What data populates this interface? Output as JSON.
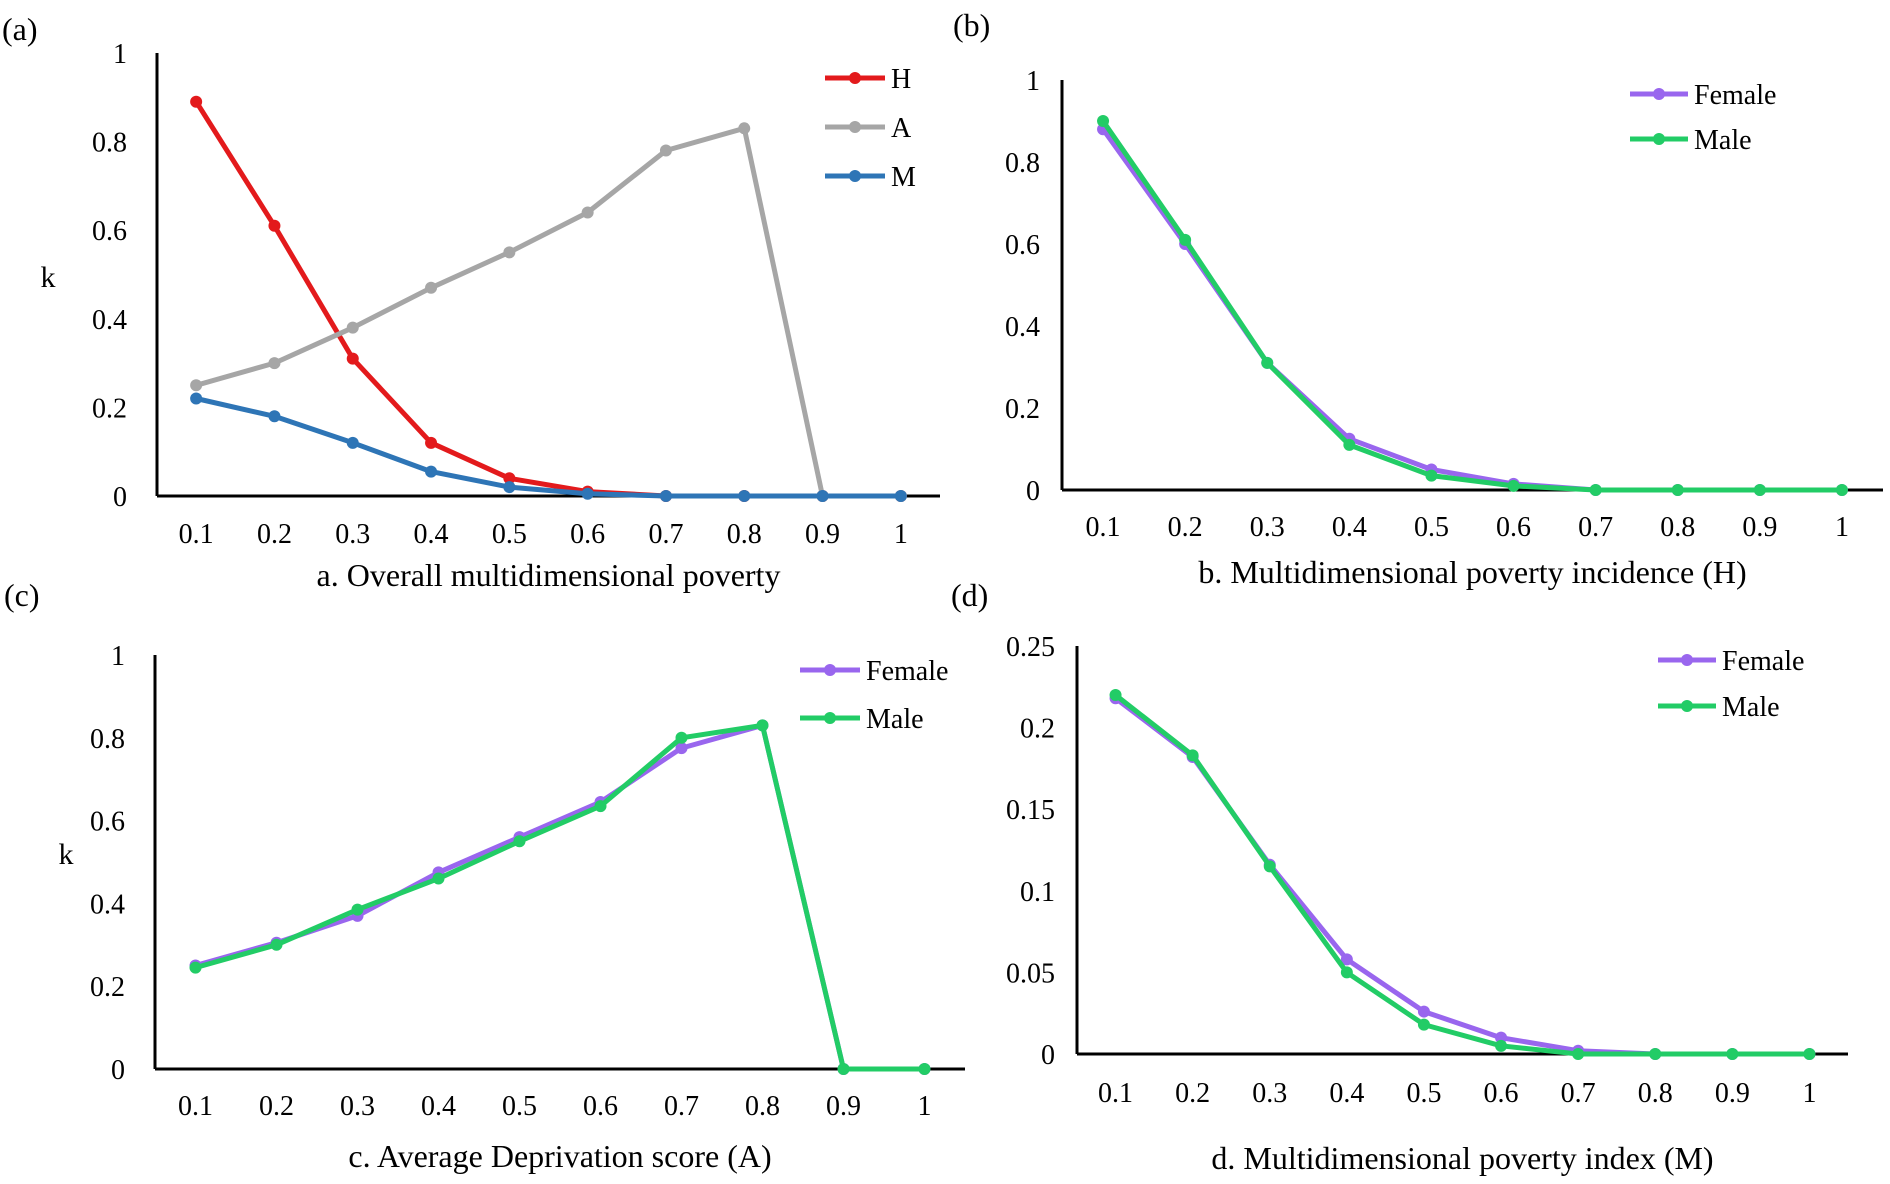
{
  "figure": {
    "colors": {
      "H": "#e31a1c",
      "A": "#a6a6a6",
      "M": "#2e75b6",
      "Female": "#9966ee",
      "Male": "#22cc66",
      "axis": "#000000"
    }
  },
  "chart_data": [
    {
      "panel_label": "(a)",
      "type": "line",
      "title": "a. Overall multidimensional poverty",
      "xlabel": "a. Overall multidimensional poverty",
      "ylabel": "k",
      "x": [
        0.1,
        0.2,
        0.3,
        0.4,
        0.5,
        0.6,
        0.7,
        0.8,
        0.9,
        1
      ],
      "x_tick_labels": [
        "0.1",
        "0.2",
        "0.3",
        "0.4",
        "0.5",
        "0.6",
        "0.7",
        "0.8",
        "0.9",
        "1"
      ],
      "ylim": [
        0,
        1
      ],
      "y_ticks": [
        0,
        0.2,
        0.4,
        0.6,
        0.8,
        1
      ],
      "y_tick_labels": [
        "0",
        "0.2",
        "0.4",
        "0.6",
        "0.8",
        "1"
      ],
      "legend_position": "top-right",
      "series": [
        {
          "name": "H",
          "color": "#e31a1c",
          "values": [
            0.89,
            0.61,
            0.31,
            0.12,
            0.04,
            0.01,
            0.0,
            0.0,
            0.0,
            0.0
          ]
        },
        {
          "name": "A",
          "color": "#a6a6a6",
          "values": [
            0.25,
            0.3,
            0.38,
            0.47,
            0.55,
            0.64,
            0.78,
            0.83,
            0.0,
            0.0
          ]
        },
        {
          "name": "M",
          "color": "#2e75b6",
          "values": [
            0.22,
            0.18,
            0.12,
            0.055,
            0.02,
            0.005,
            0.0,
            0.0,
            0.0,
            0.0
          ]
        }
      ]
    },
    {
      "panel_label": "(b)",
      "type": "line",
      "title": "b. Multidimensional poverty incidence (H)",
      "xlabel": "b. Multidimensional poverty incidence (H)",
      "ylabel": "",
      "x": [
        0.1,
        0.2,
        0.3,
        0.4,
        0.5,
        0.6,
        0.7,
        0.8,
        0.9,
        1
      ],
      "x_tick_labels": [
        "0.1",
        "0.2",
        "0.3",
        "0.4",
        "0.5",
        "0.6",
        "0.7",
        "0.8",
        "0.9",
        "1"
      ],
      "ylim": [
        0,
        1
      ],
      "y_ticks": [
        0,
        0.2,
        0.4,
        0.6,
        0.8,
        1
      ],
      "y_tick_labels": [
        "0",
        "0.2",
        "0.4",
        "0.6",
        "0.8",
        "1"
      ],
      "legend_position": "top-right",
      "series": [
        {
          "name": "Female",
          "color": "#9966ee",
          "values": [
            0.88,
            0.6,
            0.31,
            0.125,
            0.05,
            0.015,
            0.0,
            0.0,
            0.0,
            0.0
          ]
        },
        {
          "name": "Male",
          "color": "#22cc66",
          "values": [
            0.9,
            0.61,
            0.31,
            0.11,
            0.035,
            0.01,
            0.0,
            0.0,
            0.0,
            0.0
          ]
        }
      ]
    },
    {
      "panel_label": "(c)",
      "type": "line",
      "title": "c. Average Deprivation score (A)",
      "xlabel": "c. Average Deprivation score (A)",
      "ylabel": "k",
      "x": [
        0.1,
        0.2,
        0.3,
        0.4,
        0.5,
        0.6,
        0.7,
        0.8,
        0.9,
        1
      ],
      "x_tick_labels": [
        "0.1",
        "0.2",
        "0.3",
        "0.4",
        "0.5",
        "0.6",
        "0.7",
        "0.8",
        "0.9",
        "1"
      ],
      "ylim": [
        0,
        1
      ],
      "y_ticks": [
        0,
        0.2,
        0.4,
        0.6,
        0.8,
        1
      ],
      "y_tick_labels": [
        "0",
        "0.2",
        "0.4",
        "0.6",
        "0.8",
        "1"
      ],
      "legend_position": "top-right",
      "series": [
        {
          "name": "Female",
          "color": "#9966ee",
          "values": [
            0.25,
            0.305,
            0.37,
            0.475,
            0.56,
            0.645,
            0.775,
            0.83,
            0.0,
            0.0
          ]
        },
        {
          "name": "Male",
          "color": "#22cc66",
          "values": [
            0.245,
            0.3,
            0.385,
            0.46,
            0.55,
            0.635,
            0.8,
            0.83,
            0.0,
            0.0
          ]
        }
      ]
    },
    {
      "panel_label": "(d)",
      "type": "line",
      "title": "d. Multidimensional poverty index (M)",
      "xlabel": "d. Multidimensional poverty index (M)",
      "ylabel": "",
      "x": [
        0.1,
        0.2,
        0.3,
        0.4,
        0.5,
        0.6,
        0.7,
        0.8,
        0.9,
        1
      ],
      "x_tick_labels": [
        "0.1",
        "0.2",
        "0.3",
        "0.4",
        "0.5",
        "0.6",
        "0.7",
        "0.8",
        "0.9",
        "1"
      ],
      "ylim": [
        0,
        0.25
      ],
      "y_ticks": [
        0,
        0.05,
        0.1,
        0.15,
        0.2,
        0.25
      ],
      "y_tick_labels": [
        "0",
        "0.05",
        "0.1",
        "0.15",
        "0.2",
        "0.25"
      ],
      "legend_position": "top-right",
      "series": [
        {
          "name": "Female",
          "color": "#9966ee",
          "values": [
            0.218,
            0.182,
            0.116,
            0.058,
            0.026,
            0.01,
            0.002,
            0.0,
            0.0,
            0.0
          ]
        },
        {
          "name": "Male",
          "color": "#22cc66",
          "values": [
            0.22,
            0.183,
            0.115,
            0.05,
            0.018,
            0.005,
            0.0,
            0.0,
            0.0,
            0.0
          ]
        }
      ]
    }
  ]
}
